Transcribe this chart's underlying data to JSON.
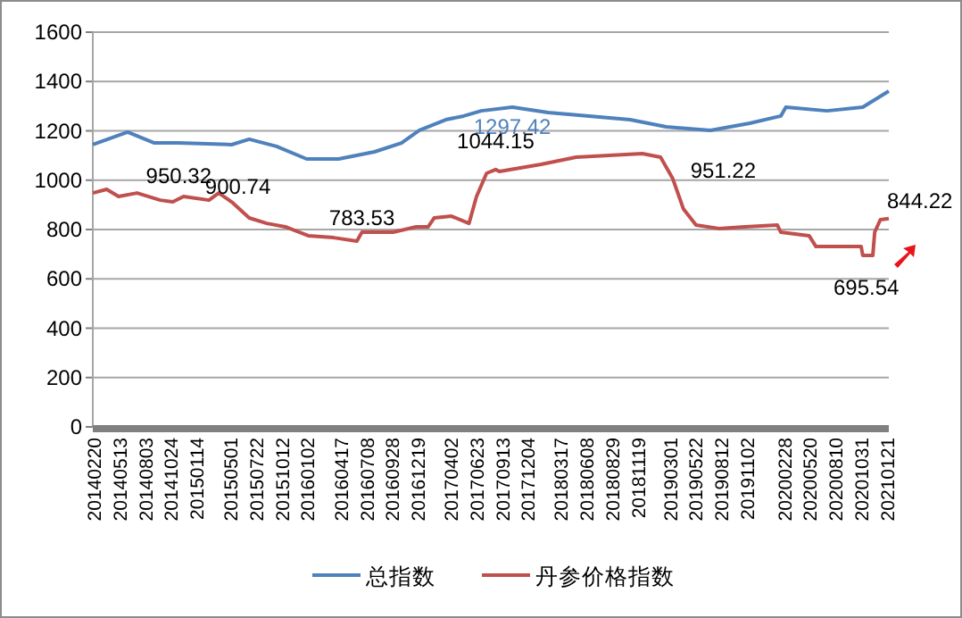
{
  "chart_data": {
    "type": "line",
    "xlim": [
      "2014-02-12",
      "2021-01-21"
    ],
    "ylim": [
      0,
      1600
    ],
    "yticks": [
      0,
      200,
      400,
      600,
      800,
      1000,
      1200,
      1400,
      1600
    ],
    "xticks": [
      {
        "value": "2014-02-20",
        "label": "20140220"
      },
      {
        "value": "2014-05-13",
        "label": "20140513"
      },
      {
        "value": "2014-08-03",
        "label": "20140803"
      },
      {
        "value": "2014-10-24",
        "label": "20141024"
      },
      {
        "value": "2015-01-14",
        "label": "20150114"
      },
      {
        "value": "2015-05-01",
        "label": "20150501"
      },
      {
        "value": "2015-07-22",
        "label": "20150722"
      },
      {
        "value": "2015-10-12",
        "label": "20151012"
      },
      {
        "value": "2016-01-02",
        "label": "20160102"
      },
      {
        "value": "2016-04-17",
        "label": "20160417"
      },
      {
        "value": "2016-07-08",
        "label": "20160708"
      },
      {
        "value": "2016-09-28",
        "label": "20160928"
      },
      {
        "value": "2016-12-19",
        "label": "20161219"
      },
      {
        "value": "2017-04-02",
        "label": "20170402"
      },
      {
        "value": "2017-06-23",
        "label": "20170623"
      },
      {
        "value": "2017-09-13",
        "label": "20170913"
      },
      {
        "value": "2017-12-04",
        "label": "20171204"
      },
      {
        "value": "2018-03-17",
        "label": "20180317"
      },
      {
        "value": "2018-06-08",
        "label": "20180608"
      },
      {
        "value": "2018-08-29",
        "label": "20180829"
      },
      {
        "value": "2018-11-19",
        "label": "20181119"
      },
      {
        "value": "2019-03-01",
        "label": "20190301"
      },
      {
        "value": "2019-05-22",
        "label": "20190522"
      },
      {
        "value": "2019-08-12",
        "label": "20190812"
      },
      {
        "value": "2019-11-02",
        "label": "20191102"
      },
      {
        "value": "2020-02-28",
        "label": "20200228"
      },
      {
        "value": "2020-05-20",
        "label": "20200520"
      },
      {
        "value": "2020-08-10",
        "label": "20200810"
      },
      {
        "value": "2020-10-31",
        "label": "20201031"
      },
      {
        "value": "2021-01-21",
        "label": "20210121"
      }
    ],
    "grid": "y",
    "legend": "bottom",
    "series": [
      {
        "name": "总指数",
        "color": "#4f81bd",
        "x": [
          "2014-02-12",
          "2014-06-03",
          "2014-08-27",
          "2014-11-12",
          "2015-04-30",
          "2015-06-25",
          "2015-09-20",
          "2015-12-25",
          "2016-04-05",
          "2016-07-28",
          "2016-10-22",
          "2016-12-18",
          "2017-03-12",
          "2017-05-08",
          "2017-07-03",
          "2017-10-10",
          "2018-02-01",
          "2018-10-20",
          "2019-02-12",
          "2019-07-03",
          "2019-11-05",
          "2020-02-12",
          "2020-02-28",
          "2020-07-08",
          "2020-10-30",
          "2021-01-21"
        ],
        "values": [
          1144,
          1195,
          1151,
          1151,
          1144,
          1166,
          1137,
          1086,
          1086,
          1115,
          1151,
          1202,
          1245,
          1260,
          1281,
          1296,
          1274,
          1245,
          1216,
          1202,
          1231,
          1260,
          1296,
          1281,
          1296,
          1361
        ]
      },
      {
        "name": "丹参价格指数",
        "color": "#c0504d",
        "x": [
          "2014-02-12",
          "2014-03-28",
          "2014-05-05",
          "2014-07-03",
          "2014-09-15",
          "2014-10-25",
          "2014-11-28",
          "2015-02-17",
          "2015-03-20",
          "2015-04-30",
          "2015-06-25",
          "2015-08-20",
          "2015-10-18",
          "2015-12-30",
          "2016-03-20",
          "2016-06-02",
          "2016-06-18",
          "2016-09-25",
          "2016-12-08",
          "2017-01-15",
          "2017-02-03",
          "2017-03-30",
          "2017-05-25",
          "2017-06-18",
          "2017-07-20",
          "2017-08-18",
          "2017-08-30",
          "2018-01-10",
          "2018-05-01",
          "2018-11-28",
          "2019-01-25",
          "2019-03-05",
          "2019-04-08",
          "2019-05-18",
          "2019-07-30",
          "2019-10-20",
          "2020-02-01",
          "2020-02-12",
          "2020-05-12",
          "2020-06-03",
          "2020-10-25",
          "2020-10-30",
          "2020-12-01",
          "2020-12-07",
          "2020-12-25",
          "2021-01-21"
        ],
        "values": [
          948,
          963,
          934,
          948,
          919,
          912,
          934,
          919,
          948,
          912,
          847,
          825,
          811,
          775,
          767,
          753,
          789,
          789,
          811,
          811,
          847,
          854,
          825,
          934,
          1028,
          1043,
          1035,
          1064,
          1093,
          1108,
          1093,
          1006,
          883,
          818,
          804,
          811,
          818,
          789,
          775,
          731,
          731,
          695,
          695,
          789,
          840,
          844
        ]
      }
    ],
    "annotations": [
      {
        "text": "950.32",
        "x": "2014-07-03",
        "y": 950.32
      },
      {
        "text": "900.74",
        "x": "2015-05-20",
        "y": 900.74
      },
      {
        "text": "783.53",
        "x": "2016-06-18",
        "y": 783.53
      },
      {
        "text": "1297.42",
        "x": "2017-10-10",
        "y": 1297.42
      },
      {
        "text": "1044.15",
        "x": "2017-08-18",
        "y": 1044.15
      },
      {
        "text": "951.22",
        "x": "2019-03-10",
        "y": 951.22
      },
      {
        "text": "695.54",
        "x": "2020-11-10",
        "y": 695.54
      },
      {
        "text": "844.22",
        "x": "2021-01-21",
        "y": 844.22
      }
    ]
  }
}
